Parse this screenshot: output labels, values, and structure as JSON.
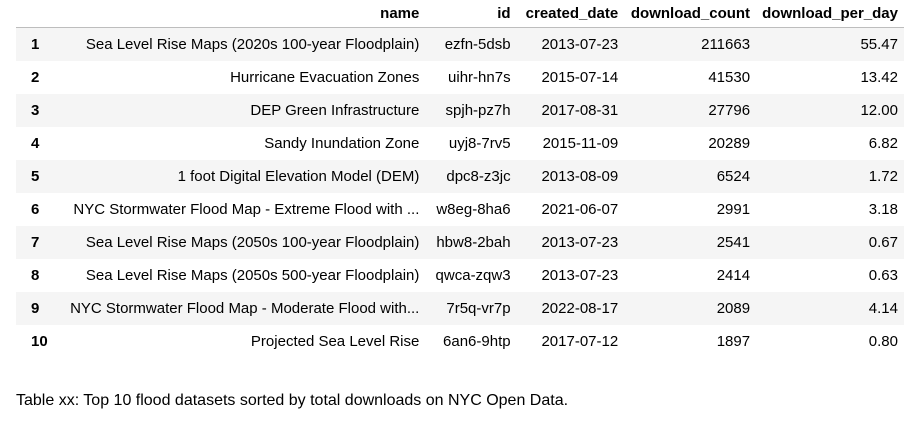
{
  "table": {
    "columns": [
      "",
      "name",
      "id",
      "created_date",
      "download_count",
      "download_per_day"
    ],
    "rows": [
      {
        "index": "1",
        "name": "Sea Level Rise Maps (2020s 100-year Floodplain)",
        "id": "ezfn-5dsb",
        "created_date": "2013-07-23",
        "download_count": "211663",
        "download_per_day": "55.47"
      },
      {
        "index": "2",
        "name": "Hurricane Evacuation Zones",
        "id": "uihr-hn7s",
        "created_date": "2015-07-14",
        "download_count": "41530",
        "download_per_day": "13.42"
      },
      {
        "index": "3",
        "name": "DEP Green Infrastructure",
        "id": "spjh-pz7h",
        "created_date": "2017-08-31",
        "download_count": "27796",
        "download_per_day": "12.00"
      },
      {
        "index": "4",
        "name": "Sandy Inundation Zone",
        "id": "uyj8-7rv5",
        "created_date": "2015-11-09",
        "download_count": "20289",
        "download_per_day": "6.82"
      },
      {
        "index": "5",
        "name": "1 foot Digital Elevation Model (DEM)",
        "id": "dpc8-z3jc",
        "created_date": "2013-08-09",
        "download_count": "6524",
        "download_per_day": "1.72"
      },
      {
        "index": "6",
        "name": "NYC Stormwater Flood Map - Extreme Flood with ...",
        "id": "w8eg-8ha6",
        "created_date": "2021-06-07",
        "download_count": "2991",
        "download_per_day": "3.18"
      },
      {
        "index": "7",
        "name": "Sea Level Rise Maps (2050s 100-year Floodplain)",
        "id": "hbw8-2bah",
        "created_date": "2013-07-23",
        "download_count": "2541",
        "download_per_day": "0.67"
      },
      {
        "index": "8",
        "name": "Sea Level Rise Maps (2050s 500-year Floodplain)",
        "id": "qwca-zqw3",
        "created_date": "2013-07-23",
        "download_count": "2414",
        "download_per_day": "0.63"
      },
      {
        "index": "9",
        "name": "NYC Stormwater Flood Map - Moderate Flood with...",
        "id": "7r5q-vr7p",
        "created_date": "2022-08-17",
        "download_count": "2089",
        "download_per_day": "4.14"
      },
      {
        "index": "10",
        "name": "Projected Sea Level Rise",
        "id": "6an6-9htp",
        "created_date": "2017-07-12",
        "download_count": "1897",
        "download_per_day": "0.80"
      }
    ]
  },
  "caption": "Table xx: Top 10 flood datasets sorted by total downloads on NYC Open Data."
}
